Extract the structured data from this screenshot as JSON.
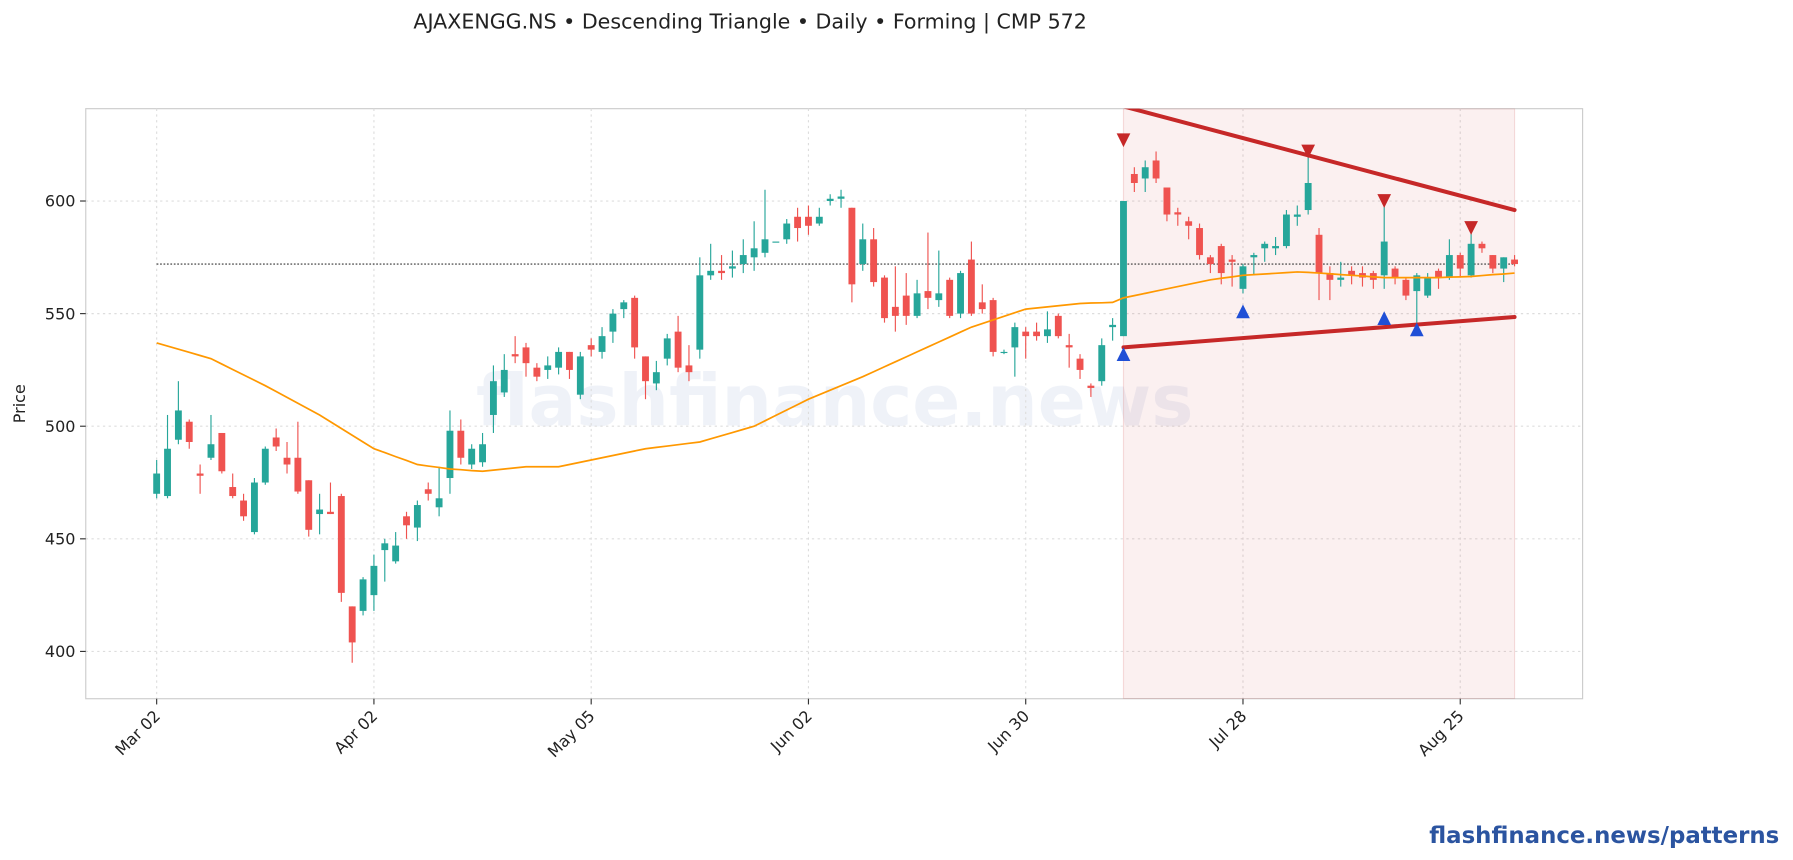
{
  "chart_data": {
    "type": "candlestick",
    "title": "AJAXENGG.NS  •  Descending Triangle  •  Daily  •  Forming  |  CMP 572",
    "ylabel": "Price",
    "watermark": "flashfinance.news",
    "footer": "flashfinance.news/patterns",
    "categories": [
      "Mar 02",
      null,
      null,
      null,
      null,
      null,
      null,
      null,
      null,
      null,
      null,
      null,
      null,
      null,
      null,
      null,
      null,
      null,
      null,
      null,
      "Apr 02",
      null,
      null,
      null,
      null,
      null,
      null,
      null,
      null,
      null,
      null,
      null,
      null,
      null,
      null,
      null,
      null,
      null,
      null,
      null,
      "May 05",
      null,
      null,
      null,
      null,
      null,
      null,
      null,
      null,
      null,
      null,
      null,
      null,
      null,
      null,
      null,
      null,
      null,
      null,
      null,
      "Jun 02",
      null,
      null,
      null,
      null,
      null,
      null,
      null,
      null,
      null,
      null,
      null,
      null,
      null,
      null,
      null,
      null,
      null,
      null,
      null,
      "Jun 30",
      null,
      null,
      null,
      null,
      null,
      null,
      null,
      null,
      null,
      null,
      null,
      null,
      null,
      null,
      null,
      null,
      null,
      null,
      null,
      "Jul 28",
      null,
      null,
      null,
      null,
      null,
      null,
      null,
      null,
      null,
      null,
      null,
      null,
      null,
      null,
      null,
      null,
      null,
      null,
      null,
      "Aug 25",
      null,
      null,
      null,
      null,
      null
    ],
    "open": [
      470,
      469,
      494,
      502,
      479,
      486,
      497,
      473,
      467,
      453,
      475,
      495,
      486,
      486,
      476,
      461,
      462,
      469,
      420,
      418,
      425,
      445,
      440,
      460,
      455,
      472,
      464,
      477,
      498,
      483,
      484,
      505,
      515,
      532,
      535,
      526,
      525,
      526,
      533,
      514,
      536,
      533,
      542,
      552,
      557,
      531,
      519,
      530,
      542,
      527,
      534,
      567,
      569,
      570,
      572,
      575,
      577,
      582,
      583,
      593,
      593,
      590,
      600,
      601,
      597,
      572,
      583,
      566,
      553,
      558,
      549,
      560,
      556,
      565,
      550,
      574,
      555,
      556,
      533,
      535,
      542,
      542,
      540,
      549,
      536,
      530,
      518,
      520,
      544,
      540,
      612,
      610,
      618,
      606,
      595,
      591,
      588,
      575,
      580,
      574,
      561,
      575,
      579,
      579,
      580,
      593,
      596,
      585,
      568,
      565,
      569,
      568,
      568,
      567,
      570,
      565,
      560,
      558,
      569,
      566,
      576,
      567,
      581,
      576,
      570,
      574
    ],
    "high": [
      485,
      505,
      520,
      503,
      483,
      505,
      497,
      479,
      470,
      477,
      491,
      499,
      493,
      502,
      476,
      470,
      475,
      470,
      420,
      433,
      443,
      450,
      453,
      462,
      467,
      475,
      482,
      507,
      503,
      492,
      497,
      527,
      532,
      540,
      537,
      528,
      531,
      535,
      533,
      533,
      539,
      544,
      552,
      556,
      558,
      531,
      529,
      541,
      549,
      536,
      575,
      581,
      576,
      578,
      583,
      591,
      605,
      582,
      592,
      597,
      598,
      597,
      603,
      605,
      597,
      590,
      588,
      567,
      571,
      568,
      565,
      586,
      578,
      566,
      569,
      582,
      563,
      557,
      534,
      546,
      544,
      546,
      551,
      550,
      541,
      532,
      519,
      539,
      548,
      600,
      615,
      618,
      622,
      606,
      597,
      593,
      590,
      576,
      581,
      576,
      572,
      577,
      582,
      584,
      596,
      598,
      620,
      588,
      571,
      573,
      571,
      571,
      569,
      598,
      571,
      566,
      568,
      568,
      570,
      583,
      577,
      589,
      582,
      576,
      575,
      576
    ],
    "low": [
      468,
      468,
      492,
      490,
      470,
      485,
      479,
      468,
      458,
      452,
      474,
      489,
      479,
      470,
      451,
      452,
      461,
      422,
      395,
      416,
      418,
      431,
      439,
      450,
      449,
      467,
      460,
      470,
      483,
      481,
      482,
      497,
      513,
      528,
      522,
      520,
      521,
      523,
      521,
      512,
      531,
      530,
      537,
      548,
      530,
      512,
      516,
      527,
      524,
      520,
      530,
      565,
      565,
      566,
      568,
      569,
      575,
      582,
      581,
      582,
      585,
      589,
      598,
      597,
      555,
      569,
      562,
      546,
      542,
      545,
      548,
      552,
      553,
      548,
      548,
      549,
      550,
      531,
      532,
      522,
      530,
      538,
      537,
      539,
      526,
      521,
      513,
      518,
      538,
      540,
      604,
      604,
      608,
      591,
      589,
      583,
      574,
      568,
      563,
      562,
      559,
      567,
      573,
      576,
      579,
      589,
      594,
      556,
      556,
      562,
      563,
      562,
      561,
      561,
      563,
      556,
      546,
      557,
      561,
      565,
      566,
      566,
      577,
      568,
      564,
      571
    ],
    "close": [
      479,
      490,
      507,
      493,
      478,
      492,
      480,
      469,
      460,
      475,
      490,
      491,
      483,
      471,
      454,
      463,
      461,
      426,
      404,
      432,
      438,
      448,
      447,
      456,
      465,
      470,
      468,
      498,
      486,
      490,
      492,
      520,
      525,
      531,
      528,
      522,
      527,
      533,
      525,
      531,
      534,
      540,
      550,
      555,
      535,
      520,
      524,
      539,
      526,
      524,
      567,
      569,
      568,
      571,
      576,
      579,
      583,
      582,
      590,
      588,
      589,
      593,
      601,
      602,
      563,
      583,
      564,
      548,
      549,
      549,
      559,
      557,
      559,
      549,
      568,
      550,
      552,
      533,
      533,
      544,
      540,
      540,
      543,
      540,
      535,
      525,
      517,
      536,
      545,
      600,
      608,
      615,
      610,
      594,
      594,
      589,
      576,
      572,
      568,
      573,
      571,
      576,
      581,
      580,
      594,
      594,
      608,
      568,
      565,
      566,
      567,
      566,
      565,
      582,
      566,
      558,
      567,
      566,
      566,
      576,
      570,
      581,
      579,
      570,
      575,
      572
    ],
    "up_color": "#26a69a",
    "down_color": "#ef5350",
    "ma": {
      "color": "#ff9800",
      "values": [
        537,
        535.6,
        534.2,
        532.8,
        531.4,
        530,
        527.6,
        525.2,
        522.8,
        520.4,
        518,
        515.4,
        512.8,
        510.2,
        507.6,
        505,
        502,
        499,
        496,
        493,
        490,
        488.3,
        486.5,
        484.8,
        483,
        482.3,
        481.7,
        481,
        480.7,
        480.3,
        480,
        480.5,
        481,
        481.5,
        482,
        482,
        482,
        482,
        483,
        484,
        485,
        486,
        487,
        488,
        489,
        490,
        490.6,
        491.2,
        491.8,
        492.4,
        493,
        494.4,
        495.8,
        497.2,
        498.6,
        500,
        502.4,
        504.8,
        507.2,
        509.6,
        512,
        514,
        516,
        518,
        520,
        522,
        524.2,
        526.4,
        528.6,
        530.8,
        533,
        535.2,
        537.4,
        539.6,
        541.8,
        544,
        545.6,
        547.2,
        548.8,
        550.4,
        552,
        552.5,
        553,
        553.5,
        554,
        554.5,
        554.7,
        554.8,
        555,
        557,
        558,
        559,
        560,
        561,
        562,
        563,
        564,
        565,
        565.7,
        566.3,
        567,
        567.3,
        567.6,
        567.9,
        568.2,
        568.5,
        568.3,
        568,
        567.7,
        567.3,
        567,
        566.7,
        566.3,
        566,
        566,
        566,
        566,
        566,
        566,
        566.2,
        566.3,
        566.5,
        566.9,
        567.3,
        567.6,
        568
      ]
    },
    "cmp": 572,
    "pattern": {
      "color": "#c62828",
      "shade": "#c62828",
      "upper": {
        "x": [
          89,
          125
        ],
        "values": [
          642,
          596
        ]
      },
      "lower": {
        "x": [
          89,
          125
        ],
        "values": [
          535,
          548.5
        ]
      },
      "peaks": {
        "color": "#c62828",
        "x": [
          89,
          106,
          113,
          121
        ],
        "values": [
          627,
          622,
          600,
          588
        ]
      },
      "troughs": {
        "color": "#1f4fd6",
        "x": [
          89,
          100,
          113,
          116
        ],
        "values": [
          532,
          551,
          548,
          543
        ]
      }
    },
    "ylim": [
      379,
      641
    ],
    "yticks": [
      400,
      450,
      500,
      550,
      600
    ],
    "grid": true
  }
}
